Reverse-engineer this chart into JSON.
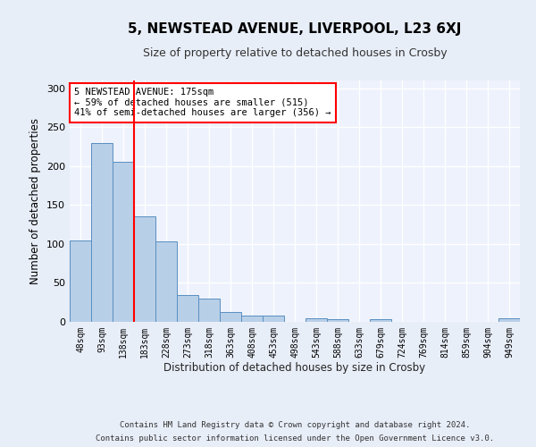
{
  "title": "5, NEWSTEAD AVENUE, LIVERPOOL, L23 6XJ",
  "subtitle": "Size of property relative to detached houses in Crosby",
  "xlabel": "Distribution of detached houses by size in Crosby",
  "ylabel": "Number of detached properties",
  "bins": [
    "48sqm",
    "93sqm",
    "138sqm",
    "183sqm",
    "228sqm",
    "273sqm",
    "318sqm",
    "363sqm",
    "408sqm",
    "453sqm",
    "498sqm",
    "543sqm",
    "588sqm",
    "633sqm",
    "679sqm",
    "724sqm",
    "769sqm",
    "814sqm",
    "859sqm",
    "904sqm",
    "949sqm"
  ],
  "values": [
    105,
    230,
    205,
    135,
    103,
    35,
    30,
    13,
    8,
    8,
    0,
    5,
    4,
    0,
    3,
    0,
    0,
    0,
    0,
    0,
    5
  ],
  "bar_color": "#b8cfe8",
  "bar_edge_color": "#5a8fc0",
  "bar_width": 1.0,
  "property_size": 175,
  "annotation_line1": "5 NEWSTEAD AVENUE: 175sqm",
  "annotation_line2": "← 59% of detached houses are smaller (515)",
  "annotation_line3": "41% of semi-detached houses are larger (356) →",
  "ylim": [
    0,
    310
  ],
  "yticks": [
    0,
    50,
    100,
    150,
    200,
    250,
    300
  ],
  "footer_line1": "Contains HM Land Registry data © Crown copyright and database right 2024.",
  "footer_line2": "Contains public sector information licensed under the Open Government Licence v3.0.",
  "bg_color": "#e8eef8",
  "plot_bg_color": "#edf2fc"
}
